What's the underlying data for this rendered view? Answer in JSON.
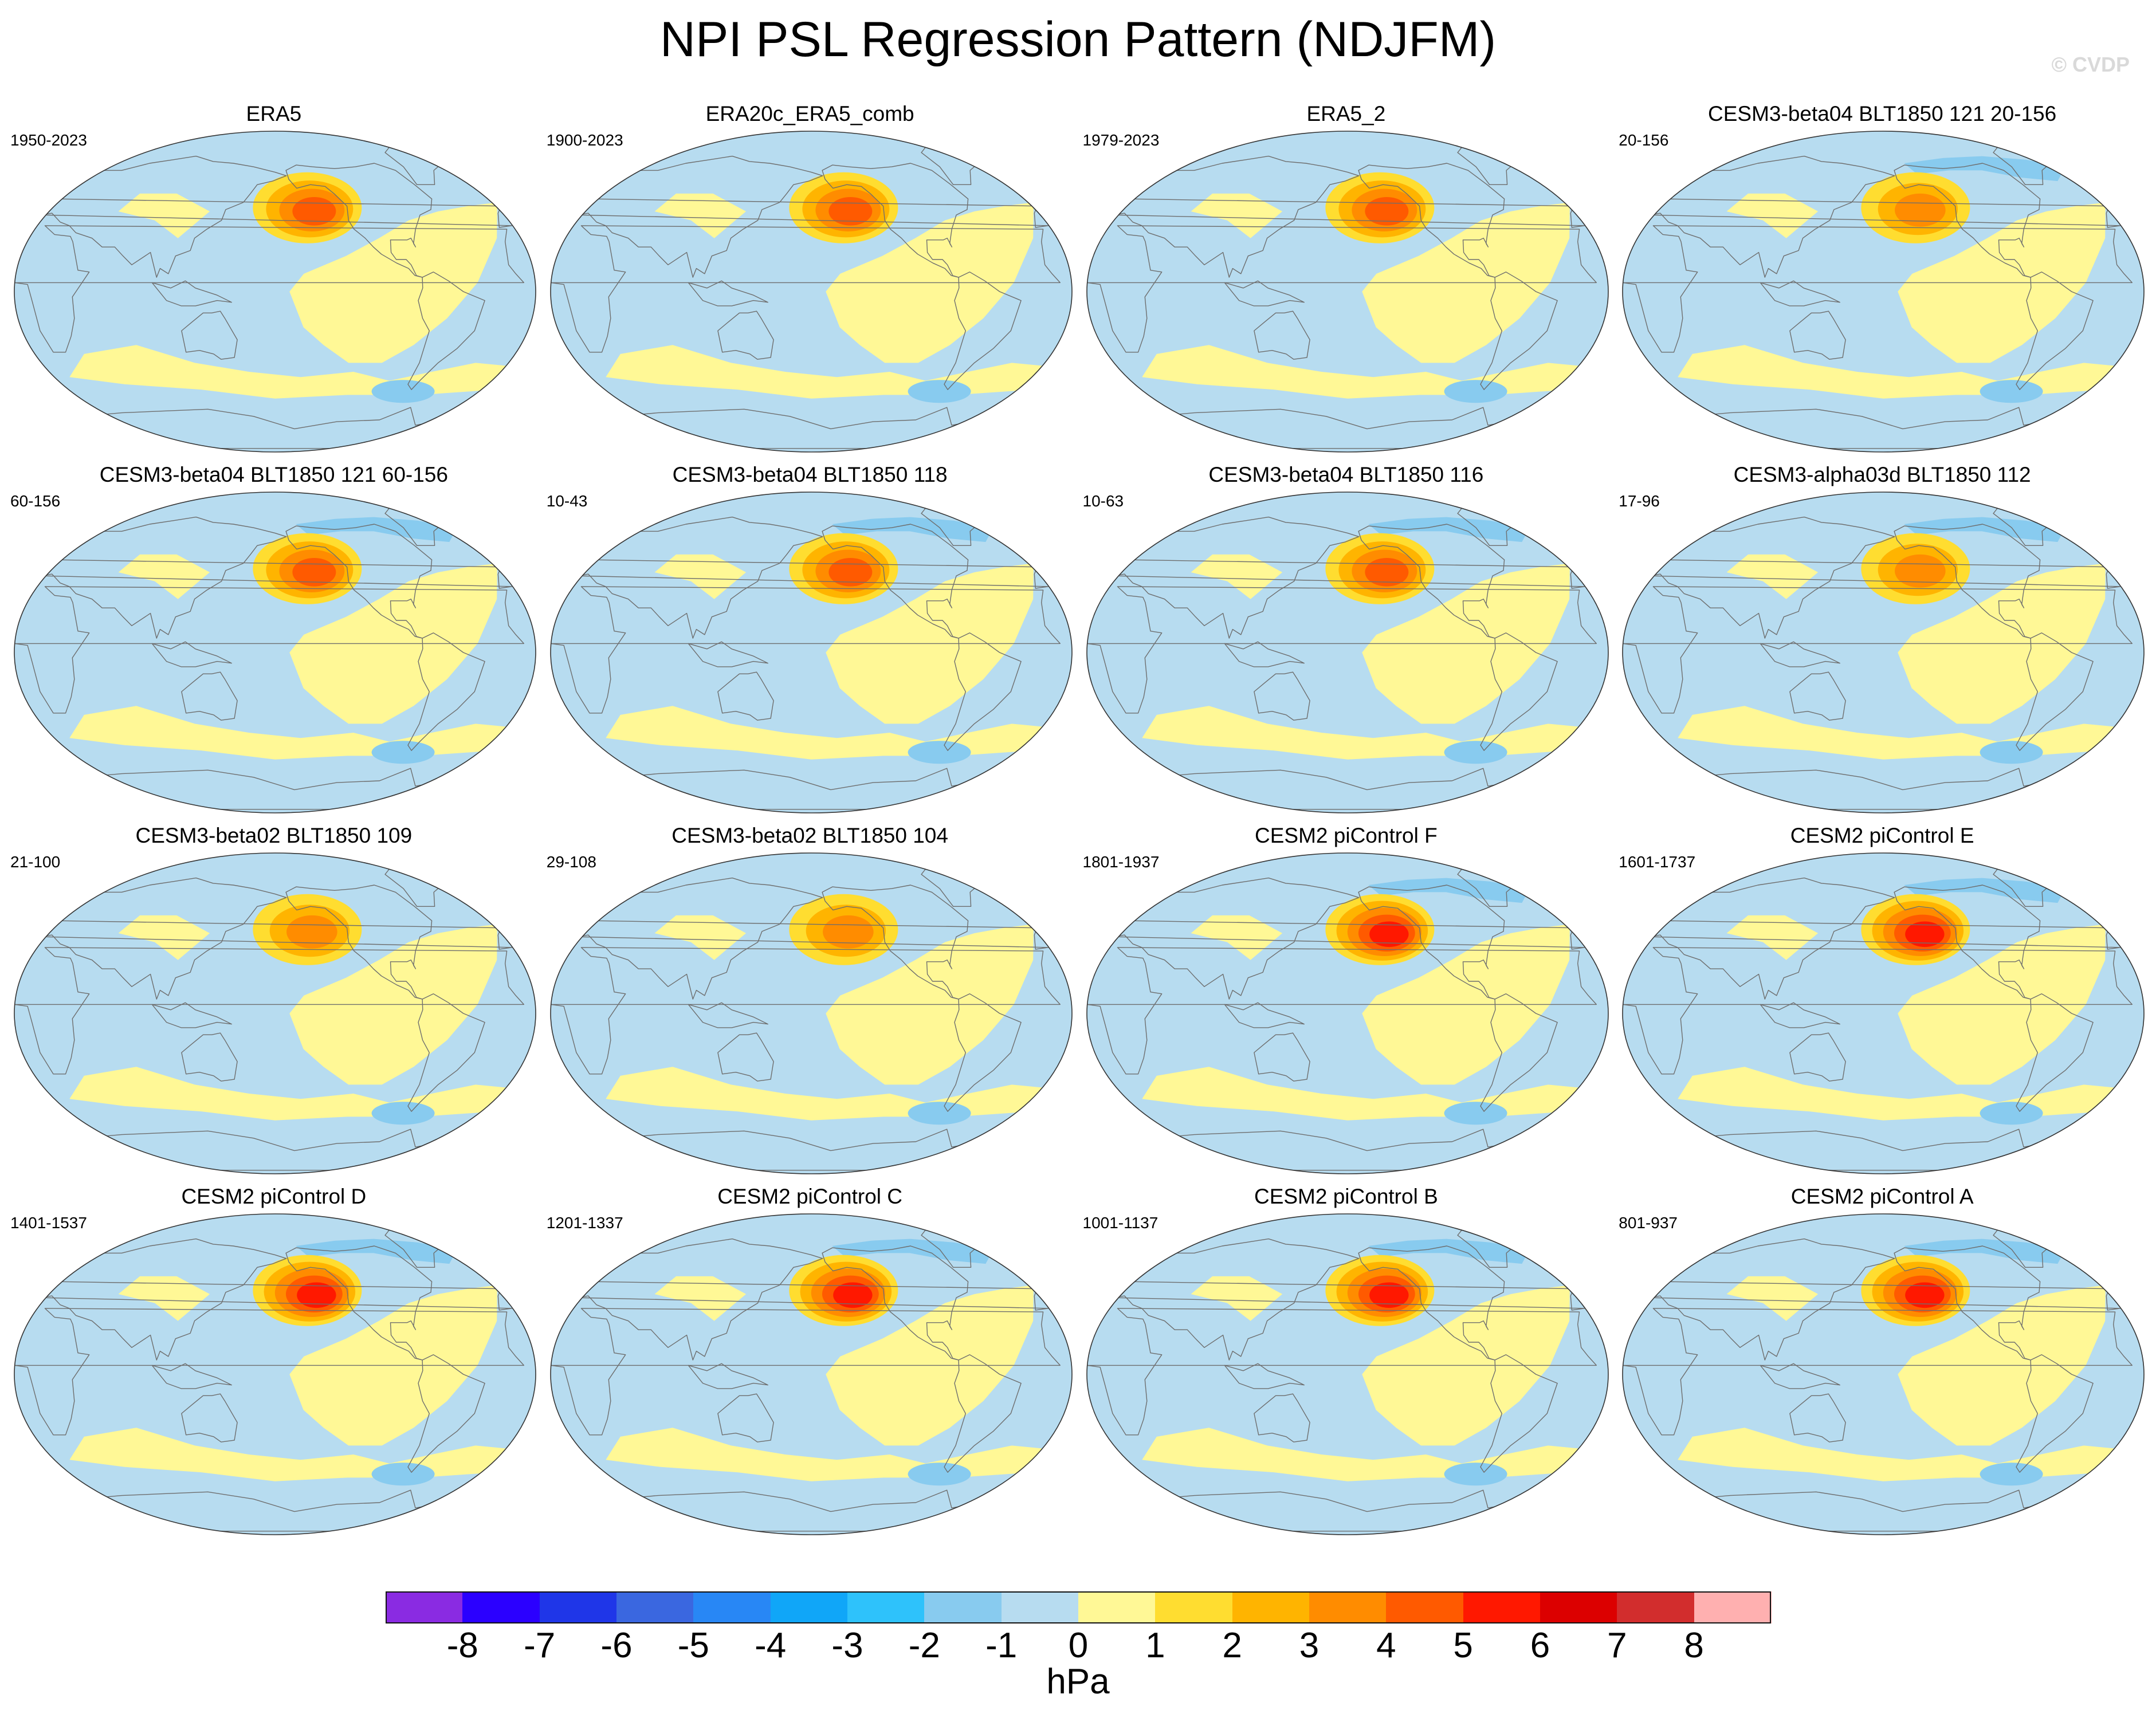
{
  "title": "NPI PSL Regression Pattern (NDJFM)",
  "watermark": "© CVDP",
  "colors": {
    "ocean_neutral": "#b7dcf0",
    "positive_light": "#fff896",
    "land_outline": "#6e6e6e",
    "globe_outline": "#333333"
  },
  "panels": [
    {
      "title": "ERA5",
      "years": "1950-2023",
      "anomaly_peak_hPa": 4,
      "negative_ring": false
    },
    {
      "title": "ERA20c_ERA5_comb",
      "years": "1900-2023",
      "anomaly_peak_hPa": 4,
      "negative_ring": false
    },
    {
      "title": "ERA5_2",
      "years": "1979-2023",
      "anomaly_peak_hPa": 4,
      "negative_ring": false
    },
    {
      "title": "CESM3-beta04 BLT1850 121 20-156",
      "years": "20-156",
      "anomaly_peak_hPa": 3,
      "negative_ring": true
    },
    {
      "title": "CESM3-beta04 BLT1850 121 60-156",
      "years": "60-156",
      "anomaly_peak_hPa": 4,
      "negative_ring": true
    },
    {
      "title": "CESM3-beta04 BLT1850 118",
      "years": "10-43",
      "anomaly_peak_hPa": 4,
      "negative_ring": true
    },
    {
      "title": "CESM3-beta04 BLT1850 116",
      "years": "10-63",
      "anomaly_peak_hPa": 4,
      "negative_ring": true
    },
    {
      "title": "CESM3-alpha03d BLT1850 112",
      "years": "17-96",
      "anomaly_peak_hPa": 3,
      "negative_ring": true
    },
    {
      "title": "CESM3-beta02 BLT1850 109",
      "years": "21-100",
      "anomaly_peak_hPa": 3,
      "negative_ring": false
    },
    {
      "title": "CESM3-beta02 BLT1850 104",
      "years": "29-108",
      "anomaly_peak_hPa": 3,
      "negative_ring": false
    },
    {
      "title": "CESM2 piControl F",
      "years": "1801-1937",
      "anomaly_peak_hPa": 5,
      "negative_ring": true
    },
    {
      "title": "CESM2 piControl E",
      "years": "1601-1737",
      "anomaly_peak_hPa": 5,
      "negative_ring": true
    },
    {
      "title": "CESM2 piControl D",
      "years": "1401-1537",
      "anomaly_peak_hPa": 5,
      "negative_ring": true
    },
    {
      "title": "CESM2 piControl C",
      "years": "1201-1337",
      "anomaly_peak_hPa": 5,
      "negative_ring": true
    },
    {
      "title": "CESM2 piControl B",
      "years": "1001-1137",
      "anomaly_peak_hPa": 5,
      "negative_ring": true
    },
    {
      "title": "CESM2 piControl A",
      "years": "801-937",
      "anomaly_peak_hPa": 5,
      "negative_ring": true
    }
  ],
  "colorbar": {
    "unit": "hPa",
    "labels": [
      "-8",
      "-7",
      "-6",
      "-5",
      "-4",
      "-3",
      "-2",
      "-1",
      "0",
      "1",
      "2",
      "3",
      "4",
      "5",
      "6",
      "7",
      "8"
    ],
    "colors": [
      "#8a2be2",
      "#2b00ff",
      "#1f36e8",
      "#3a67e0",
      "#2887f5",
      "#10a6f8",
      "#2ec2fb",
      "#88cbef",
      "#b7dcf0",
      "#fff896",
      "#ffdd30",
      "#ffb400",
      "#ff8c00",
      "#ff5a00",
      "#ff1800",
      "#dc0000",
      "#d22d2d",
      "#ffb0b0"
    ]
  }
}
